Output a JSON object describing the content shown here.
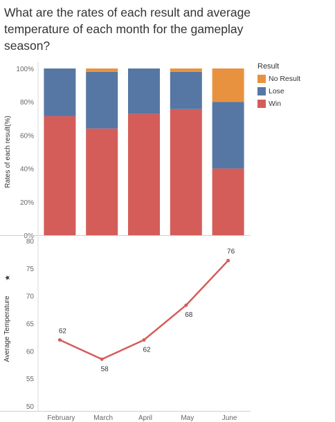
{
  "title": "What are the rates of each result and average temperature of each month for the gameplay season?",
  "legend": {
    "title": "Result",
    "items": [
      {
        "label": "No Result",
        "color": "#E8923F"
      },
      {
        "label": "Lose",
        "color": "#5677A4"
      },
      {
        "label": "Win",
        "color": "#D45D5A"
      }
    ]
  },
  "chart_data": [
    {
      "type": "bar",
      "stacked": true,
      "ylabel": "Rates of each result(%)",
      "ylim": [
        0,
        100
      ],
      "yticks": [
        "0%",
        "20%",
        "40%",
        "60%",
        "80%",
        "100%"
      ],
      "categories": [
        "February",
        "March",
        "April",
        "May",
        "June"
      ],
      "series": [
        {
          "name": "Win",
          "color": "#D45D5A",
          "values": [
            71.4,
            64,
            72.7,
            75.6,
            40
          ]
        },
        {
          "name": "Lose",
          "color": "#5677A4",
          "values": [
            28.6,
            34,
            27.3,
            22.4,
            40
          ]
        },
        {
          "name": "No Result",
          "color": "#E8923F",
          "values": [
            0,
            2,
            0,
            2,
            20
          ]
        }
      ]
    },
    {
      "type": "line",
      "ylabel": "Average Temperature",
      "ylim": [
        50,
        80
      ],
      "yticks": [
        "50",
        "55",
        "60",
        "65",
        "70",
        "75",
        "80"
      ],
      "categories": [
        "February",
        "March",
        "April",
        "May",
        "June"
      ],
      "values": [
        62,
        58.5,
        62,
        68.3,
        76.4
      ],
      "labels": [
        "62",
        "58",
        "62",
        "68",
        "76"
      ],
      "color": "#D45D5A"
    }
  ]
}
